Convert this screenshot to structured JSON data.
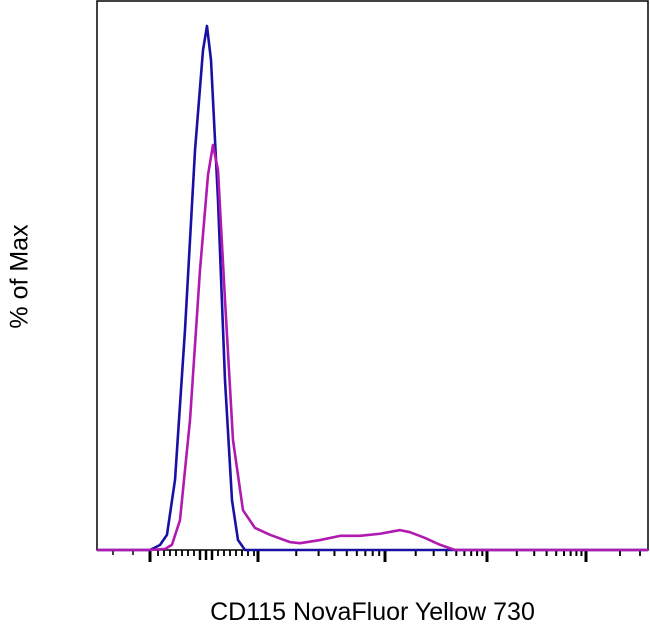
{
  "chart_data": {
    "type": "line",
    "title": "",
    "xlabel": "CD115 NovaFluor Yellow 730",
    "ylabel": "% of Max",
    "x_scale": "logicle (unlabeled)",
    "xlim": [
      0,
      1000
    ],
    "ylim": [
      0,
      105
    ],
    "grid": false,
    "legend": "none",
    "series": [
      {
        "color": "#1a10a6",
        "x": [
          0,
          96.2,
          114.3,
          127,
          141.6,
          159.7,
          177.9,
          192.4,
          199.6,
          206.9,
          219.6,
          232.3,
          245,
          255.9,
          268.6,
          1000
        ],
        "y": [
          0,
          0,
          0.95,
          2.9,
          13.4,
          42,
          76.3,
          95.4,
          100,
          93.5,
          66.8,
          32.4,
          9.5,
          1.9,
          0,
          0
        ]
      },
      {
        "color": "#b01ab0",
        "x": [
          0,
          96.2,
          123.4,
          136.1,
          150.6,
          168.8,
          186.9,
          201.5,
          210.5,
          219.6,
          232.3,
          246.8,
          264.9,
          286.8,
          314,
          350.3,
          368.4,
          404.7,
          441,
          477.3,
          513.6,
          549.9,
          568,
          595.3,
          622.5,
          649.7,
          1000
        ],
        "y": [
          0,
          0,
          0.2,
          1,
          5.7,
          24.8,
          53.4,
          71.6,
          77.3,
          72.5,
          47.7,
          21,
          7.6,
          4.2,
          2.9,
          1.5,
          1.3,
          1.9,
          2.7,
          2.7,
          3.1,
          3.8,
          3.4,
          2.3,
          1,
          0,
          0
        ]
      }
    ]
  }
}
